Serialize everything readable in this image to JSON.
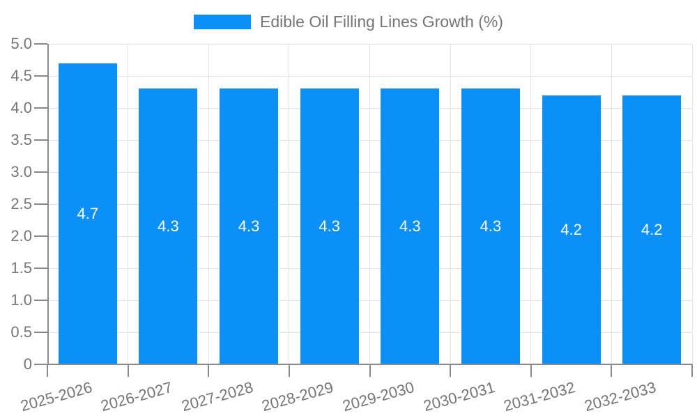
{
  "chart_data": {
    "type": "bar",
    "title": "Edible Oil Filling Lines Growth (%)",
    "categories": [
      "2025-2026",
      "2026-2027",
      "2027-2028",
      "2028-2029",
      "2029-2030",
      "2030-2031",
      "2031-2032",
      "2032-2033"
    ],
    "values": [
      4.7,
      4.3,
      4.3,
      4.3,
      4.3,
      4.3,
      4.2,
      4.2
    ],
    "bar_labels": [
      "4.7",
      "4.3",
      "4.3",
      "4.3",
      "4.3",
      "4.3",
      "4.2",
      "4.2"
    ],
    "xlabel": "",
    "ylabel": "",
    "ylim": [
      0,
      5
    ],
    "ytick_step": 0.5,
    "yticks": [
      "0",
      "0.5",
      "1.0",
      "1.5",
      "2.0",
      "2.5",
      "3.0",
      "3.5",
      "4.0",
      "4.5",
      "5.0"
    ],
    "grid": true,
    "legend_position": "top-center",
    "colors": {
      "bar": "#0A90F7",
      "bar_value_text": "#ffffff",
      "axis": "#898989",
      "tick_text": "#757575",
      "grid": "#e3e3e3",
      "background": "#ffffff"
    }
  }
}
